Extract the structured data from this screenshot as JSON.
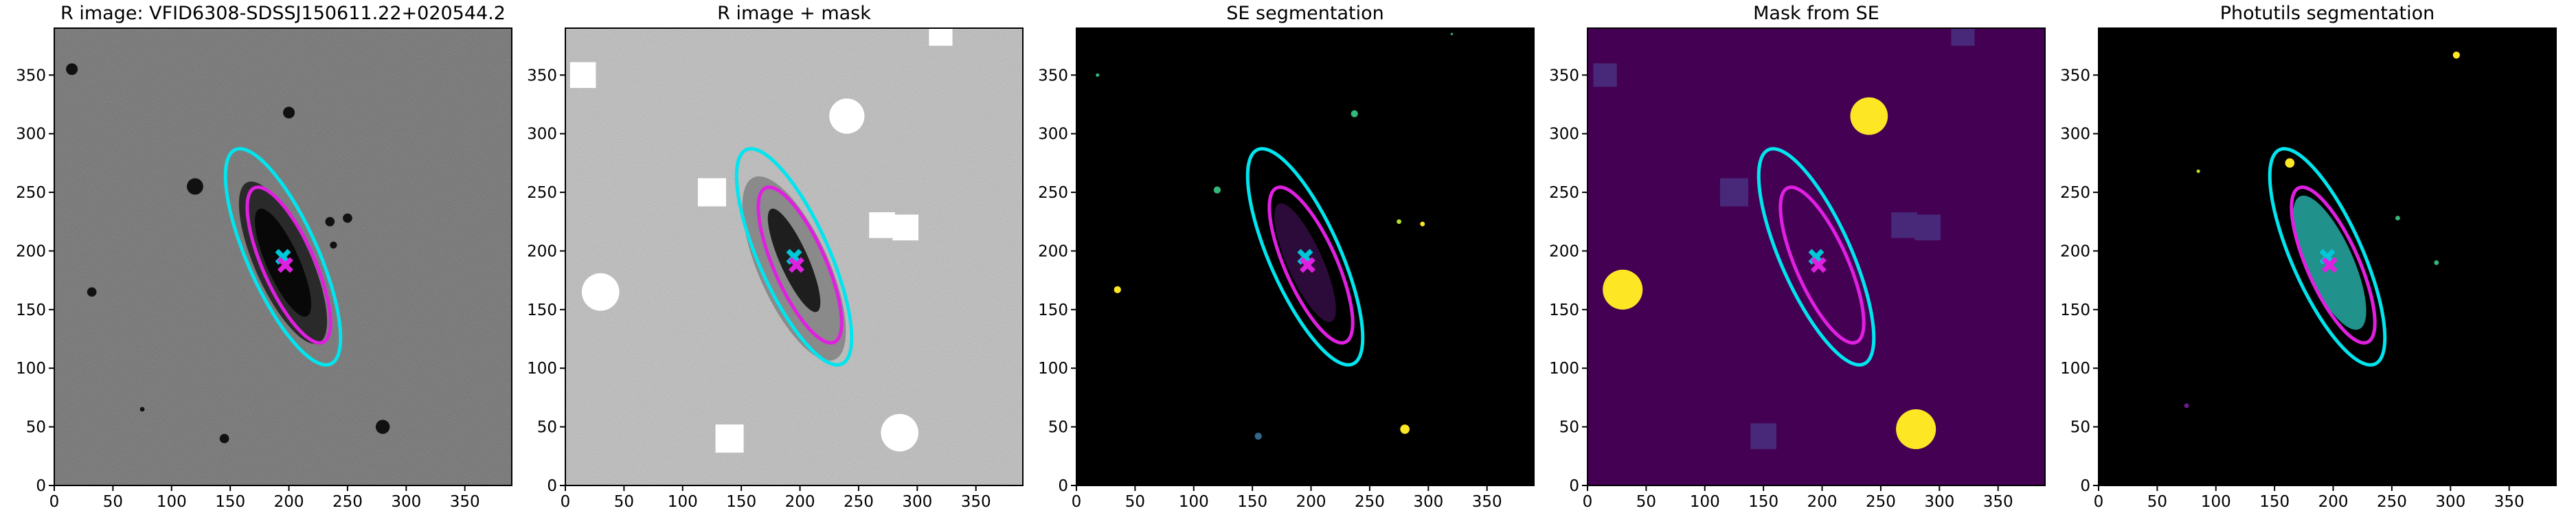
{
  "chart_data": [
    {
      "type": "image",
      "title": "R image: VFID6308-SDSSJ150611.22+020544.2",
      "background": "#4a4a4a",
      "noise": true,
      "xlim": [
        0,
        390
      ],
      "ylim": [
        0,
        390
      ],
      "xticks": [
        0,
        50,
        100,
        150,
        200,
        250,
        300,
        350
      ],
      "yticks": [
        0,
        50,
        100,
        150,
        200,
        250,
        300,
        350
      ],
      "patches": [
        {
          "shape": "ellipse",
          "x": 195,
          "y": 190,
          "a": 75,
          "b": 24,
          "angle": 114,
          "color": "#2a2a2a"
        },
        {
          "shape": "ellipse",
          "x": 195,
          "y": 190,
          "a": 50,
          "b": 14,
          "angle": 114,
          "color": "#080808"
        },
        {
          "shape": "circle",
          "x": 15,
          "y": 355,
          "r": 5,
          "color": "#111111"
        },
        {
          "shape": "circle",
          "x": 120,
          "y": 255,
          "r": 7,
          "color": "#111111"
        },
        {
          "shape": "circle",
          "x": 200,
          "y": 318,
          "r": 5,
          "color": "#111111"
        },
        {
          "shape": "circle",
          "x": 32,
          "y": 165,
          "r": 4,
          "color": "#111111"
        },
        {
          "shape": "circle",
          "x": 280,
          "y": 50,
          "r": 6,
          "color": "#111111"
        },
        {
          "shape": "circle",
          "x": 145,
          "y": 40,
          "r": 4,
          "color": "#111111"
        },
        {
          "shape": "circle",
          "x": 235,
          "y": 225,
          "r": 4,
          "color": "#111111"
        },
        {
          "shape": "circle",
          "x": 250,
          "y": 228,
          "r": 4,
          "color": "#111111"
        },
        {
          "shape": "circle",
          "x": 238,
          "y": 205,
          "r": 3,
          "color": "#111111"
        },
        {
          "shape": "circle",
          "x": 75,
          "y": 65,
          "r": 2,
          "color": "#111111"
        }
      ],
      "ellipses": [
        {
          "x": 195,
          "y": 195,
          "a": 100,
          "b": 30,
          "angle": 114,
          "color": "#00e5ee"
        },
        {
          "x": 200,
          "y": 188,
          "a": 72,
          "b": 22,
          "angle": 114,
          "color": "#e020e0"
        }
      ],
      "centers": [
        {
          "x": 195,
          "y": 195,
          "color": "#00c8d8"
        },
        {
          "x": 197,
          "y": 188,
          "color": "#e020e0"
        }
      ]
    },
    {
      "type": "image",
      "title": "R image + mask",
      "background": "#bdbdbd",
      "noise": true,
      "xlim": [
        0,
        390
      ],
      "ylim": [
        0,
        390
      ],
      "xticks": [
        0,
        50,
        100,
        150,
        200,
        250,
        300,
        350
      ],
      "yticks": [
        0,
        50,
        100,
        150,
        200,
        250,
        300,
        350
      ],
      "patches": [
        {
          "shape": "ellipse",
          "x": 195,
          "y": 185,
          "a": 85,
          "b": 30,
          "angle": 114,
          "color": "#8a8a8a"
        },
        {
          "shape": "ellipse",
          "x": 195,
          "y": 192,
          "a": 48,
          "b": 12,
          "angle": 114,
          "color": "#1e1e1e"
        },
        {
          "shape": "square",
          "x": 15,
          "y": 350,
          "r": 11,
          "color": "#ffffff"
        },
        {
          "shape": "square",
          "x": 320,
          "y": 385,
          "r": 10,
          "color": "#ffffff"
        },
        {
          "shape": "square",
          "x": 125,
          "y": 250,
          "r": 12,
          "color": "#ffffff"
        },
        {
          "shape": "square",
          "x": 270,
          "y": 222,
          "r": 11,
          "color": "#ffffff"
        },
        {
          "shape": "square",
          "x": 290,
          "y": 220,
          "r": 11,
          "color": "#ffffff"
        },
        {
          "shape": "square",
          "x": 140,
          "y": 40,
          "r": 12,
          "color": "#ffffff"
        },
        {
          "shape": "circle",
          "x": 240,
          "y": 315,
          "r": 15,
          "color": "#ffffff"
        },
        {
          "shape": "circle",
          "x": 30,
          "y": 165,
          "r": 16,
          "color": "#ffffff"
        },
        {
          "shape": "circle",
          "x": 285,
          "y": 45,
          "r": 16,
          "color": "#ffffff"
        }
      ],
      "ellipses": [
        {
          "x": 195,
          "y": 195,
          "a": 100,
          "b": 30,
          "angle": 114,
          "color": "#00e5ee"
        },
        {
          "x": 200,
          "y": 188,
          "a": 72,
          "b": 22,
          "angle": 114,
          "color": "#e020e0"
        }
      ],
      "centers": [
        {
          "x": 195,
          "y": 195,
          "color": "#00c8d8"
        },
        {
          "x": 197,
          "y": 188,
          "color": "#e020e0"
        }
      ]
    },
    {
      "type": "image",
      "title": "SE segmentation",
      "background": "#000000",
      "noise": false,
      "xlim": [
        0,
        390
      ],
      "ylim": [
        0,
        390
      ],
      "xticks": [
        0,
        50,
        100,
        150,
        200,
        250,
        300,
        350
      ],
      "yticks": [
        0,
        50,
        100,
        150,
        200,
        250,
        300,
        350
      ],
      "patches": [
        {
          "shape": "ellipse",
          "x": 195,
          "y": 190,
          "a": 55,
          "b": 15,
          "angle": 114,
          "color": "#2c0b3a"
        },
        {
          "shape": "circle",
          "x": 35,
          "y": 167,
          "r": 3,
          "color": "#fde725"
        },
        {
          "shape": "circle",
          "x": 280,
          "y": 48,
          "r": 4,
          "color": "#fde725"
        },
        {
          "shape": "circle",
          "x": 237,
          "y": 317,
          "r": 3,
          "color": "#35b779"
        },
        {
          "shape": "circle",
          "x": 120,
          "y": 252,
          "r": 3,
          "color": "#35b779"
        },
        {
          "shape": "circle",
          "x": 155,
          "y": 42,
          "r": 3,
          "color": "#31688e"
        },
        {
          "shape": "circle",
          "x": 18,
          "y": 350,
          "r": 1.5,
          "color": "#35b779"
        },
        {
          "shape": "circle",
          "x": 295,
          "y": 223,
          "r": 2,
          "color": "#fde725"
        },
        {
          "shape": "circle",
          "x": 275,
          "y": 225,
          "r": 2,
          "color": "#b5de2b"
        },
        {
          "shape": "circle",
          "x": 320,
          "y": 385,
          "r": 1,
          "color": "#35b779"
        }
      ],
      "ellipses": [
        {
          "x": 195,
          "y": 195,
          "a": 100,
          "b": 30,
          "angle": 114,
          "color": "#00e5ee"
        },
        {
          "x": 200,
          "y": 188,
          "a": 72,
          "b": 22,
          "angle": 114,
          "color": "#e020e0"
        }
      ],
      "centers": [
        {
          "x": 195,
          "y": 195,
          "color": "#00c8d8"
        },
        {
          "x": 197,
          "y": 188,
          "color": "#e020e0"
        }
      ]
    },
    {
      "type": "image",
      "title": "Mask from SE",
      "background": "#440154",
      "noise": false,
      "xlim": [
        0,
        390
      ],
      "ylim": [
        0,
        390
      ],
      "xticks": [
        0,
        50,
        100,
        150,
        200,
        250,
        300,
        350
      ],
      "yticks": [
        0,
        50,
        100,
        150,
        200,
        250,
        300,
        350
      ],
      "patches": [
        {
          "shape": "circle",
          "x": 240,
          "y": 315,
          "r": 16,
          "color": "#fde725"
        },
        {
          "shape": "circle",
          "x": 30,
          "y": 167,
          "r": 17,
          "color": "#fde725"
        },
        {
          "shape": "circle",
          "x": 280,
          "y": 48,
          "r": 17,
          "color": "#fde725"
        },
        {
          "shape": "square",
          "x": 15,
          "y": 350,
          "r": 10,
          "color": "#482878"
        },
        {
          "shape": "square",
          "x": 125,
          "y": 250,
          "r": 12,
          "color": "#482878"
        },
        {
          "shape": "square",
          "x": 270,
          "y": 222,
          "r": 11,
          "color": "#482878"
        },
        {
          "shape": "square",
          "x": 290,
          "y": 220,
          "r": 11,
          "color": "#482878"
        },
        {
          "shape": "square",
          "x": 150,
          "y": 42,
          "r": 11,
          "color": "#482878"
        },
        {
          "shape": "square",
          "x": 320,
          "y": 385,
          "r": 10,
          "color": "#482878"
        }
      ],
      "ellipses": [
        {
          "x": 195,
          "y": 195,
          "a": 100,
          "b": 30,
          "angle": 114,
          "color": "#00e5ee"
        },
        {
          "x": 200,
          "y": 188,
          "a": 72,
          "b": 22,
          "angle": 114,
          "color": "#e020e0"
        }
      ],
      "centers": [
        {
          "x": 195,
          "y": 195,
          "color": "#00c8d8"
        },
        {
          "x": 197,
          "y": 188,
          "color": "#e020e0"
        }
      ]
    },
    {
      "type": "image",
      "title": "Photutils segmentation",
      "background": "#000000",
      "noise": false,
      "xlim": [
        0,
        390
      ],
      "ylim": [
        0,
        390
      ],
      "xticks": [
        0,
        50,
        100,
        150,
        200,
        250,
        300,
        350
      ],
      "yticks": [
        0,
        50,
        100,
        150,
        200,
        250,
        300,
        350
      ],
      "patches": [
        {
          "shape": "ellipse",
          "x": 197,
          "y": 190,
          "a": 62,
          "b": 20,
          "angle": 114,
          "color": "#21918c"
        },
        {
          "shape": "circle",
          "x": 163,
          "y": 275,
          "r": 4,
          "color": "#fde725"
        },
        {
          "shape": "circle",
          "x": 305,
          "y": 367,
          "r": 3,
          "color": "#fde725"
        },
        {
          "shape": "circle",
          "x": 255,
          "y": 228,
          "r": 2,
          "color": "#35b779"
        },
        {
          "shape": "circle",
          "x": 288,
          "y": 190,
          "r": 2,
          "color": "#35b779"
        },
        {
          "shape": "circle",
          "x": 85,
          "y": 268,
          "r": 1.5,
          "color": "#b5de2b"
        },
        {
          "shape": "circle",
          "x": 75,
          "y": 68,
          "r": 2,
          "color": "#6a1b9a"
        }
      ],
      "ellipses": [
        {
          "x": 195,
          "y": 195,
          "a": 100,
          "b": 30,
          "angle": 114,
          "color": "#00e5ee"
        },
        {
          "x": 200,
          "y": 188,
          "a": 72,
          "b": 22,
          "angle": 114,
          "color": "#e020e0"
        }
      ],
      "centers": [
        {
          "x": 195,
          "y": 195,
          "color": "#00c8d8"
        },
        {
          "x": 197,
          "y": 188,
          "color": "#e020e0"
        }
      ]
    }
  ]
}
